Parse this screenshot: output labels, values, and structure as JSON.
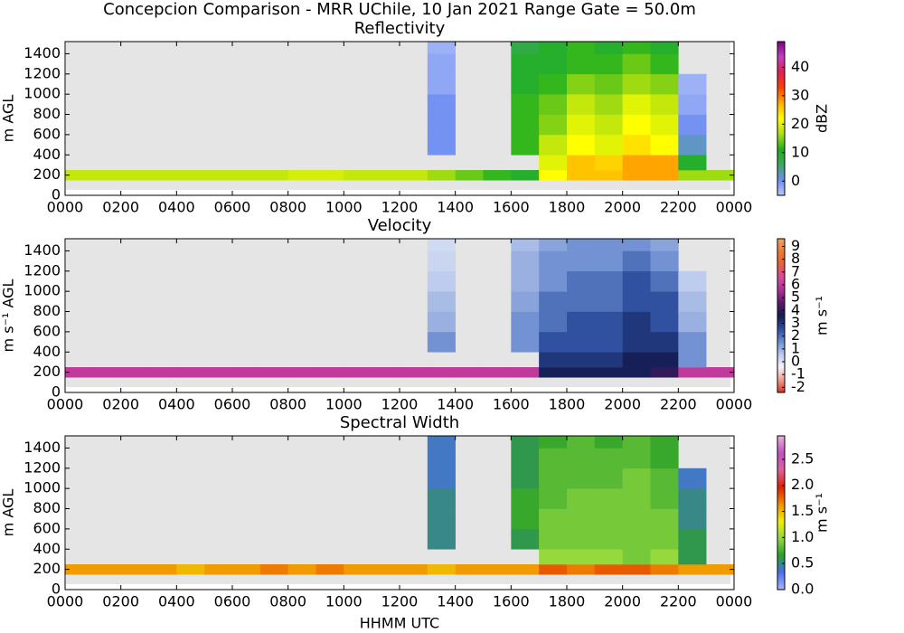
{
  "title": "Concepcion Comparison - MRR UChile, 10 Jan 2021 Range Gate = 50.0m",
  "chart_data": [
    {
      "type": "heatmap",
      "title": "Reflectivity",
      "ylabel": "m AGL",
      "x_bins": [
        0,
        1,
        2,
        3,
        4,
        5,
        6,
        7,
        8,
        9,
        10,
        11,
        12,
        13,
        14,
        15,
        16,
        17,
        18,
        19,
        20,
        21,
        22,
        23,
        24
      ],
      "y_bins": [
        150,
        250,
        400,
        600,
        800,
        1000,
        1200,
        1400,
        1520
      ],
      "z": [
        [
          18,
          18,
          18,
          18,
          18,
          18,
          18,
          18,
          19,
          19,
          18,
          18,
          18,
          16,
          14,
          12,
          10,
          22,
          26,
          26,
          28,
          28,
          16,
          16
        ],
        [
          null,
          null,
          null,
          null,
          null,
          null,
          null,
          null,
          null,
          null,
          null,
          null,
          null,
          null,
          null,
          null,
          null,
          20,
          26,
          25,
          28,
          28,
          10,
          null
        ],
        [
          null,
          null,
          null,
          null,
          null,
          null,
          null,
          null,
          null,
          null,
          null,
          null,
          null,
          0,
          null,
          null,
          12,
          18,
          22,
          20,
          24,
          22,
          2,
          null
        ],
        [
          null,
          null,
          null,
          null,
          null,
          null,
          null,
          null,
          null,
          null,
          null,
          null,
          null,
          0,
          null,
          null,
          12,
          15,
          20,
          18,
          22,
          20,
          0,
          null
        ],
        [
          null,
          null,
          null,
          null,
          null,
          null,
          null,
          null,
          null,
          null,
          null,
          null,
          null,
          0,
          null,
          null,
          12,
          14,
          18,
          16,
          20,
          18,
          -2,
          null
        ],
        [
          null,
          null,
          null,
          null,
          null,
          null,
          null,
          null,
          null,
          null,
          null,
          null,
          null,
          -2,
          null,
          null,
          10,
          12,
          15,
          14,
          16,
          15,
          -3,
          null
        ],
        [
          null,
          null,
          null,
          null,
          null,
          null,
          null,
          null,
          null,
          null,
          null,
          null,
          null,
          -2,
          null,
          null,
          10,
          10,
          12,
          12,
          14,
          12,
          null,
          null
        ],
        [
          null,
          null,
          null,
          null,
          null,
          null,
          null,
          null,
          null,
          null,
          null,
          null,
          null,
          -3,
          null,
          null,
          8,
          10,
          12,
          10,
          12,
          10,
          null,
          null
        ]
      ],
      "xlim": [
        0,
        24
      ],
      "ylim": [
        0,
        1520
      ],
      "xticks": [
        {
          "value": 0,
          "label": "0000"
        },
        {
          "value": 2,
          "label": "0200"
        },
        {
          "value": 4,
          "label": "0400"
        },
        {
          "value": 6,
          "label": "0600"
        },
        {
          "value": 8,
          "label": "0800"
        },
        {
          "value": 10,
          "label": "1000"
        },
        {
          "value": 12,
          "label": "1200"
        },
        {
          "value": 14,
          "label": "1400"
        },
        {
          "value": 16,
          "label": "1600"
        },
        {
          "value": 18,
          "label": "1800"
        },
        {
          "value": 20,
          "label": "2000"
        },
        {
          "value": 22,
          "label": "2200"
        },
        {
          "value": 24,
          "label": "0000"
        }
      ],
      "yticks": [
        0,
        200,
        400,
        600,
        800,
        1000,
        1200,
        1400
      ],
      "colorbar": {
        "label": "dBZ",
        "zlim": [
          -5,
          49
        ],
        "ticks": [
          0,
          10,
          20,
          30,
          40
        ],
        "colormap": [
          "#b8c6fa",
          "#6f8ef0",
          "#3da860",
          "#1fb01f",
          "#b0e010",
          "#ffff00",
          "#ffb000",
          "#ff4000",
          "#e02050",
          "#c040c0",
          "#800080"
        ]
      }
    },
    {
      "type": "heatmap",
      "title": "Velocity",
      "ylabel": "m s⁻¹ AGL",
      "x_bins": [
        0,
        1,
        2,
        3,
        4,
        5,
        6,
        7,
        8,
        9,
        10,
        11,
        12,
        13,
        14,
        15,
        16,
        17,
        18,
        19,
        20,
        21,
        22,
        23,
        24
      ],
      "y_bins": [
        150,
        250,
        400,
        600,
        800,
        1000,
        1200,
        1400,
        1520
      ],
      "z": [
        [
          6,
          6,
          6,
          6,
          6,
          6,
          6,
          6,
          6,
          6,
          6,
          6,
          6,
          6,
          6,
          6,
          6,
          3.5,
          3.5,
          3.5,
          3.5,
          4,
          6,
          6
        ],
        [
          null,
          null,
          null,
          null,
          null,
          null,
          null,
          null,
          null,
          null,
          null,
          null,
          null,
          null,
          null,
          null,
          null,
          3,
          3,
          3,
          3.5,
          3.5,
          1.5,
          null
        ],
        [
          null,
          null,
          null,
          null,
          null,
          null,
          null,
          null,
          null,
          null,
          null,
          null,
          null,
          1.5,
          null,
          null,
          1.5,
          2.5,
          2.5,
          2.5,
          3,
          3,
          1.5,
          null
        ],
        [
          null,
          null,
          null,
          null,
          null,
          null,
          null,
          null,
          null,
          null,
          null,
          null,
          null,
          1,
          null,
          null,
          1.5,
          2,
          2.5,
          2.5,
          3,
          2.5,
          1,
          null
        ],
        [
          null,
          null,
          null,
          null,
          null,
          null,
          null,
          null,
          null,
          null,
          null,
          null,
          null,
          0.8,
          null,
          null,
          1.2,
          2,
          2,
          2,
          2.5,
          2.5,
          0.8,
          null
        ],
        [
          null,
          null,
          null,
          null,
          null,
          null,
          null,
          null,
          null,
          null,
          null,
          null,
          null,
          0.5,
          null,
          null,
          1,
          1.5,
          2,
          2,
          2.5,
          2,
          0.5,
          null
        ],
        [
          null,
          null,
          null,
          null,
          null,
          null,
          null,
          null,
          null,
          null,
          null,
          null,
          null,
          0.3,
          null,
          null,
          1,
          1.5,
          1.5,
          1.5,
          2,
          1.5,
          null,
          null
        ],
        [
          null,
          null,
          null,
          null,
          null,
          null,
          null,
          null,
          null,
          null,
          null,
          null,
          null,
          0.2,
          null,
          null,
          0.8,
          1.2,
          1.5,
          1.5,
          1.5,
          1.2,
          null,
          null
        ]
      ],
      "xlim": [
        0,
        24
      ],
      "ylim": [
        0,
        1520
      ],
      "xticks": [
        {
          "value": 0,
          "label": "0000"
        },
        {
          "value": 2,
          "label": "0200"
        },
        {
          "value": 4,
          "label": "0400"
        },
        {
          "value": 6,
          "label": "0600"
        },
        {
          "value": 8,
          "label": "0800"
        },
        {
          "value": 10,
          "label": "1000"
        },
        {
          "value": 12,
          "label": "1200"
        },
        {
          "value": 14,
          "label": "1400"
        },
        {
          "value": 16,
          "label": "1600"
        },
        {
          "value": 18,
          "label": "1800"
        },
        {
          "value": 20,
          "label": "2000"
        },
        {
          "value": 22,
          "label": "2200"
        },
        {
          "value": 24,
          "label": "0000"
        }
      ],
      "yticks": [
        0,
        200,
        400,
        600,
        800,
        1000,
        1200,
        1400
      ],
      "colorbar": {
        "label": "m s⁻¹",
        "zlim": [
          -2.4,
          9.6
        ],
        "ticks": [
          -2,
          -1,
          0,
          1,
          2,
          3,
          4,
          5,
          6,
          7,
          8,
          9
        ],
        "colormap": [
          "#e03020",
          "#f4a090",
          "#f4f4fa",
          "#b8c8ec",
          "#6a8cd0",
          "#2a4a9a",
          "#141a50",
          "#5a1a6a",
          "#b0309a",
          "#d84aa0",
          "#e8603a",
          "#f07a30",
          "#f4a060"
        ]
      }
    },
    {
      "type": "heatmap",
      "title": "Spectral Width",
      "ylabel": "m AGL",
      "xlabel": "HHMM UTC",
      "x_bins": [
        0,
        1,
        2,
        3,
        4,
        5,
        6,
        7,
        8,
        9,
        10,
        11,
        12,
        13,
        14,
        15,
        16,
        17,
        18,
        19,
        20,
        21,
        22,
        23,
        24
      ],
      "y_bins": [
        150,
        250,
        400,
        600,
        800,
        1000,
        1200,
        1400,
        1520
      ],
      "z": [
        [
          1.6,
          1.6,
          1.6,
          1.6,
          1.5,
          1.6,
          1.6,
          1.7,
          1.6,
          1.7,
          1.6,
          1.6,
          1.6,
          1.5,
          1.6,
          1.6,
          1.6,
          1.8,
          1.7,
          1.8,
          1.8,
          1.7,
          1.6,
          1.6
        ],
        [
          null,
          null,
          null,
          null,
          null,
          null,
          null,
          null,
          null,
          null,
          null,
          null,
          null,
          null,
          null,
          null,
          null,
          1,
          1,
          1,
          0.9,
          1,
          0.6,
          null
        ],
        [
          null,
          null,
          null,
          null,
          null,
          null,
          null,
          null,
          null,
          null,
          null,
          null,
          null,
          0.5,
          null,
          null,
          0.6,
          0.9,
          0.9,
          0.9,
          0.9,
          0.9,
          0.6,
          null
        ],
        [
          null,
          null,
          null,
          null,
          null,
          null,
          null,
          null,
          null,
          null,
          null,
          null,
          null,
          0.5,
          null,
          null,
          0.7,
          0.9,
          0.9,
          0.9,
          0.9,
          0.9,
          0.5,
          null
        ],
        [
          null,
          null,
          null,
          null,
          null,
          null,
          null,
          null,
          null,
          null,
          null,
          null,
          null,
          0.5,
          null,
          null,
          0.7,
          0.8,
          0.9,
          0.9,
          0.9,
          0.8,
          0.5,
          null
        ],
        [
          null,
          null,
          null,
          null,
          null,
          null,
          null,
          null,
          null,
          null,
          null,
          null,
          null,
          0.4,
          null,
          null,
          0.6,
          0.8,
          0.8,
          0.8,
          0.9,
          0.8,
          0.4,
          null
        ],
        [
          null,
          null,
          null,
          null,
          null,
          null,
          null,
          null,
          null,
          null,
          null,
          null,
          null,
          0.4,
          null,
          null,
          0.6,
          0.8,
          0.8,
          0.8,
          0.8,
          0.7,
          null,
          null
        ],
        [
          null,
          null,
          null,
          null,
          null,
          null,
          null,
          null,
          null,
          null,
          null,
          null,
          null,
          0.4,
          null,
          null,
          0.6,
          0.7,
          0.8,
          0.7,
          0.8,
          0.7,
          null,
          null
        ]
      ],
      "xlim": [
        0,
        24
      ],
      "ylim": [
        0,
        1520
      ],
      "xticks": [
        {
          "value": 0,
          "label": "0000"
        },
        {
          "value": 2,
          "label": "0200"
        },
        {
          "value": 4,
          "label": "0400"
        },
        {
          "value": 6,
          "label": "0600"
        },
        {
          "value": 8,
          "label": "0800"
        },
        {
          "value": 10,
          "label": "1000"
        },
        {
          "value": 12,
          "label": "1200"
        },
        {
          "value": 14,
          "label": "1400"
        },
        {
          "value": 16,
          "label": "1600"
        },
        {
          "value": 18,
          "label": "1800"
        },
        {
          "value": 20,
          "label": "2000"
        },
        {
          "value": 22,
          "label": "2200"
        },
        {
          "value": 24,
          "label": "0000"
        }
      ],
      "yticks": [
        0,
        200,
        400,
        600,
        800,
        1000,
        1200,
        1400
      ],
      "colorbar": {
        "label": "m s⁻¹",
        "zlim": [
          0,
          2.95
        ],
        "ticks": [
          {
            "value": 0,
            "label": "0.0"
          },
          {
            "value": 0.5,
            "label": "0.5"
          },
          {
            "value": 1,
            "label": "1.0"
          },
          {
            "value": 1.5,
            "label": "1.5"
          },
          {
            "value": 2,
            "label": "2.0"
          },
          {
            "value": 2.5,
            "label": "2.5"
          }
        ],
        "colormap": [
          "#a8b8f8",
          "#4a6ef0",
          "#2aa02a",
          "#90d840",
          "#f0f000",
          "#f09000",
          "#e02000",
          "#e060a0",
          "#c050c0",
          "#f0b0e0"
        ]
      }
    }
  ]
}
